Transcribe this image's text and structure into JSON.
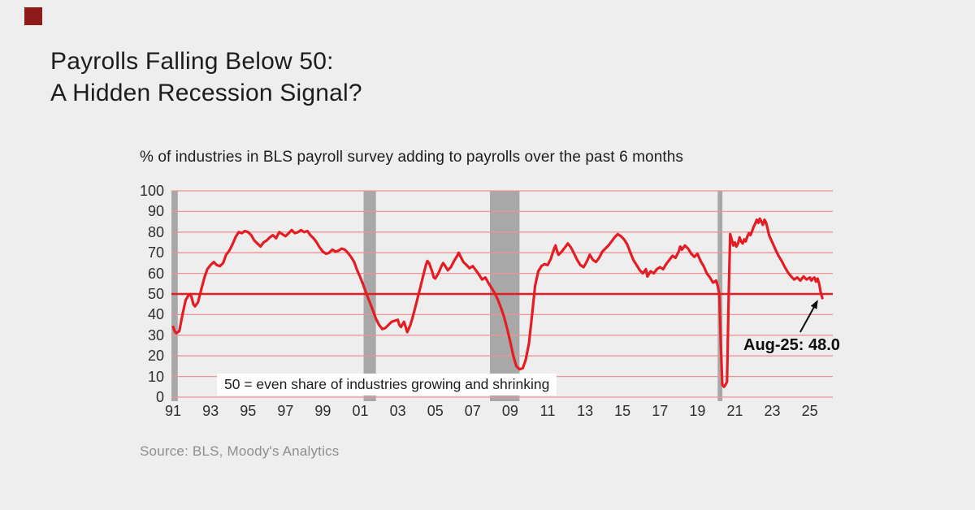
{
  "page": {
    "background": "#eeeeee"
  },
  "brand": {
    "square_color": "#8e1b1b"
  },
  "header": {
    "title_line1": "Payrolls Falling Below 50:",
    "title_line2": "A Hidden Recession Signal?"
  },
  "chart": {
    "subtitle": "% of industries in BLS payroll survey adding to payrolls over the past 6 months",
    "refline_label": "50 = even share of industries growing and shrinking",
    "annotation": {
      "label": "Aug-25: 48.0",
      "arrow_from": [
        2024.49,
        31.5
      ],
      "arrow_to": [
        2025.4,
        46.5
      ]
    },
    "source": "Source: BLS, Moody's Analytics"
  },
  "chart_data": {
    "type": "line",
    "title": "% of industries in BLS payroll survey adding to payrolls over the past 6 months",
    "xlabel": "",
    "ylabel": "",
    "xlim": [
      1990.91,
      2026.23
    ],
    "ylim": [
      0,
      100
    ],
    "yticks": [
      0,
      10,
      20,
      30,
      40,
      50,
      60,
      70,
      80,
      90,
      100
    ],
    "xticks": [
      [
        1991,
        "91"
      ],
      [
        1993,
        "93"
      ],
      [
        1995,
        "95"
      ],
      [
        1997,
        "97"
      ],
      [
        1999,
        "99"
      ],
      [
        2001,
        "01"
      ],
      [
        2003,
        "03"
      ],
      [
        2005,
        "05"
      ],
      [
        2007,
        "07"
      ],
      [
        2009,
        "09"
      ],
      [
        2011,
        "11"
      ],
      [
        2013,
        "13"
      ],
      [
        2015,
        "15"
      ],
      [
        2017,
        "17"
      ],
      [
        2019,
        "19"
      ],
      [
        2021,
        "21"
      ],
      [
        2023,
        "23"
      ],
      [
        2025,
        "25"
      ]
    ],
    "grid": "horizontal",
    "legend": "none",
    "refline_y": 50,
    "recession_bands": [
      [
        1990.91,
        1991.25
      ],
      [
        2001.17,
        2001.83
      ],
      [
        2007.92,
        2009.5
      ],
      [
        2020.08,
        2020.33
      ]
    ],
    "colors": {
      "line": "#e41d25",
      "grid_minor": "#eb9494",
      "refline": "#e41d25",
      "band": "#a8a8a8",
      "annotation": "#0d0d0d"
    },
    "series": [
      {
        "name": "% of industries adding to payrolls over past 6 months",
        "color": "#e41d25",
        "points": [
          [
            1991.0,
            34
          ],
          [
            1991.08,
            32
          ],
          [
            1991.17,
            31
          ],
          [
            1991.33,
            32
          ],
          [
            1991.5,
            40
          ],
          [
            1991.67,
            47
          ],
          [
            1991.83,
            49.5
          ],
          [
            1991.92,
            50
          ],
          [
            1992.0,
            48
          ],
          [
            1992.08,
            45
          ],
          [
            1992.17,
            44
          ],
          [
            1992.33,
            46
          ],
          [
            1992.5,
            52
          ],
          [
            1992.67,
            58
          ],
          [
            1992.83,
            62
          ],
          [
            1993.0,
            64
          ],
          [
            1993.17,
            65.5
          ],
          [
            1993.33,
            64
          ],
          [
            1993.5,
            63.5
          ],
          [
            1993.67,
            65
          ],
          [
            1993.83,
            69
          ],
          [
            1994.0,
            71
          ],
          [
            1994.17,
            74
          ],
          [
            1994.33,
            77.5
          ],
          [
            1994.5,
            80
          ],
          [
            1994.67,
            79.5
          ],
          [
            1994.83,
            80.5
          ],
          [
            1995.0,
            80
          ],
          [
            1995.17,
            78.5
          ],
          [
            1995.33,
            76
          ],
          [
            1995.5,
            74.5
          ],
          [
            1995.67,
            73
          ],
          [
            1995.83,
            75
          ],
          [
            1996.0,
            76
          ],
          [
            1996.17,
            77.5
          ],
          [
            1996.33,
            78.5
          ],
          [
            1996.5,
            77
          ],
          [
            1996.67,
            80
          ],
          [
            1996.83,
            79
          ],
          [
            1997.0,
            78
          ],
          [
            1997.17,
            79.5
          ],
          [
            1997.33,
            81
          ],
          [
            1997.5,
            79.5
          ],
          [
            1997.67,
            80
          ],
          [
            1997.83,
            81
          ],
          [
            1998.0,
            80
          ],
          [
            1998.17,
            80.5
          ],
          [
            1998.33,
            78.5
          ],
          [
            1998.5,
            77
          ],
          [
            1998.67,
            75
          ],
          [
            1998.83,
            72.5
          ],
          [
            1999.0,
            70.5
          ],
          [
            1999.17,
            69.5
          ],
          [
            1999.33,
            70
          ],
          [
            1999.5,
            71.5
          ],
          [
            1999.67,
            70.5
          ],
          [
            1999.83,
            71
          ],
          [
            2000.0,
            72
          ],
          [
            2000.17,
            71.5
          ],
          [
            2000.33,
            70
          ],
          [
            2000.5,
            68
          ],
          [
            2000.67,
            65.5
          ],
          [
            2000.83,
            61.5
          ],
          [
            2001.0,
            58
          ],
          [
            2001.17,
            54
          ],
          [
            2001.33,
            50
          ],
          [
            2001.5,
            46
          ],
          [
            2001.67,
            42
          ],
          [
            2001.83,
            38
          ],
          [
            2002.0,
            35
          ],
          [
            2002.17,
            33
          ],
          [
            2002.33,
            33.5
          ],
          [
            2002.5,
            35
          ],
          [
            2002.67,
            36.5
          ],
          [
            2002.83,
            37
          ],
          [
            2003.0,
            37.5
          ],
          [
            2003.08,
            35
          ],
          [
            2003.17,
            34
          ],
          [
            2003.33,
            36.5
          ],
          [
            2003.42,
            34
          ],
          [
            2003.5,
            31.5
          ],
          [
            2003.58,
            33
          ],
          [
            2003.67,
            35
          ],
          [
            2003.83,
            40
          ],
          [
            2004.0,
            46
          ],
          [
            2004.17,
            52
          ],
          [
            2004.33,
            58
          ],
          [
            2004.5,
            64
          ],
          [
            2004.58,
            66
          ],
          [
            2004.67,
            65
          ],
          [
            2004.83,
            61
          ],
          [
            2004.92,
            58
          ],
          [
            2005.0,
            57.5
          ],
          [
            2005.17,
            60
          ],
          [
            2005.33,
            63.5
          ],
          [
            2005.42,
            65
          ],
          [
            2005.5,
            64
          ],
          [
            2005.67,
            61.5
          ],
          [
            2005.83,
            63
          ],
          [
            2006.0,
            66
          ],
          [
            2006.17,
            68.5
          ],
          [
            2006.25,
            70
          ],
          [
            2006.33,
            68.5
          ],
          [
            2006.5,
            65.5
          ],
          [
            2006.67,
            64
          ],
          [
            2006.83,
            62.5
          ],
          [
            2007.0,
            63.5
          ],
          [
            2007.17,
            61.5
          ],
          [
            2007.33,
            59.5
          ],
          [
            2007.5,
            57
          ],
          [
            2007.67,
            58
          ],
          [
            2007.83,
            55.5
          ],
          [
            2008.0,
            53
          ],
          [
            2008.17,
            50.5
          ],
          [
            2008.33,
            47.5
          ],
          [
            2008.5,
            43.5
          ],
          [
            2008.67,
            39
          ],
          [
            2008.83,
            33.5
          ],
          [
            2009.0,
            27
          ],
          [
            2009.17,
            20
          ],
          [
            2009.33,
            15
          ],
          [
            2009.5,
            13.5
          ],
          [
            2009.67,
            14
          ],
          [
            2009.83,
            18
          ],
          [
            2010.0,
            26
          ],
          [
            2010.17,
            40
          ],
          [
            2010.33,
            54
          ],
          [
            2010.5,
            61
          ],
          [
            2010.67,
            63.5
          ],
          [
            2010.83,
            64.5
          ],
          [
            2011.0,
            64
          ],
          [
            2011.17,
            67
          ],
          [
            2011.33,
            71.5
          ],
          [
            2011.42,
            73.5
          ],
          [
            2011.5,
            71
          ],
          [
            2011.58,
            69
          ],
          [
            2011.75,
            70.5
          ],
          [
            2011.92,
            72.5
          ],
          [
            2012.08,
            74.5
          ],
          [
            2012.25,
            72.5
          ],
          [
            2012.42,
            69.5
          ],
          [
            2012.58,
            66.5
          ],
          [
            2012.75,
            64
          ],
          [
            2012.92,
            63
          ],
          [
            2013.08,
            65.5
          ],
          [
            2013.25,
            69
          ],
          [
            2013.42,
            66.5
          ],
          [
            2013.58,
            65.5
          ],
          [
            2013.75,
            67.5
          ],
          [
            2013.92,
            70.5
          ],
          [
            2014.08,
            72
          ],
          [
            2014.25,
            73.5
          ],
          [
            2014.42,
            75.5
          ],
          [
            2014.58,
            77.5
          ],
          [
            2014.75,
            79
          ],
          [
            2014.92,
            78
          ],
          [
            2015.08,
            76.5
          ],
          [
            2015.25,
            74
          ],
          [
            2015.42,
            70
          ],
          [
            2015.58,
            66.5
          ],
          [
            2015.75,
            64
          ],
          [
            2015.92,
            61.5
          ],
          [
            2016.08,
            60
          ],
          [
            2016.25,
            62
          ],
          [
            2016.33,
            58.5
          ],
          [
            2016.5,
            61
          ],
          [
            2016.67,
            60
          ],
          [
            2016.83,
            62
          ],
          [
            2017.0,
            63
          ],
          [
            2017.17,
            62
          ],
          [
            2017.33,
            64.5
          ],
          [
            2017.5,
            66.5
          ],
          [
            2017.67,
            68.5
          ],
          [
            2017.83,
            67.5
          ],
          [
            2018.0,
            70.5
          ],
          [
            2018.08,
            73
          ],
          [
            2018.17,
            71.5
          ],
          [
            2018.33,
            73.5
          ],
          [
            2018.5,
            72
          ],
          [
            2018.67,
            69.5
          ],
          [
            2018.83,
            68
          ],
          [
            2019.0,
            69.5
          ],
          [
            2019.17,
            66
          ],
          [
            2019.33,
            63.5
          ],
          [
            2019.5,
            60
          ],
          [
            2019.67,
            58
          ],
          [
            2019.83,
            55.5
          ],
          [
            2020.0,
            56.5
          ],
          [
            2020.08,
            54
          ],
          [
            2020.17,
            50
          ],
          [
            2020.25,
            25
          ],
          [
            2020.33,
            6
          ],
          [
            2020.42,
            5
          ],
          [
            2020.5,
            6
          ],
          [
            2020.58,
            7.5
          ],
          [
            2020.67,
            50
          ],
          [
            2020.75,
            79
          ],
          [
            2020.83,
            76.5
          ],
          [
            2020.92,
            73.5
          ],
          [
            2021.0,
            75
          ],
          [
            2021.08,
            73
          ],
          [
            2021.17,
            74.5
          ],
          [
            2021.25,
            77.5
          ],
          [
            2021.33,
            75.5
          ],
          [
            2021.42,
            74.5
          ],
          [
            2021.5,
            76.5
          ],
          [
            2021.58,
            75.5
          ],
          [
            2021.67,
            78
          ],
          [
            2021.75,
            79.5
          ],
          [
            2021.83,
            78.5
          ],
          [
            2021.92,
            80.5
          ],
          [
            2022.0,
            82.5
          ],
          [
            2022.08,
            84
          ],
          [
            2022.17,
            86
          ],
          [
            2022.25,
            84.5
          ],
          [
            2022.33,
            86.5
          ],
          [
            2022.42,
            85
          ],
          [
            2022.5,
            83.5
          ],
          [
            2022.58,
            86
          ],
          [
            2022.67,
            84.5
          ],
          [
            2022.75,
            81.5
          ],
          [
            2022.83,
            78.5
          ],
          [
            2022.92,
            76.5
          ],
          [
            2023.0,
            75
          ],
          [
            2023.17,
            71.5
          ],
          [
            2023.33,
            68.5
          ],
          [
            2023.5,
            66
          ],
          [
            2023.67,
            63
          ],
          [
            2023.83,
            60.5
          ],
          [
            2024.0,
            58.5
          ],
          [
            2024.17,
            57
          ],
          [
            2024.33,
            58
          ],
          [
            2024.5,
            56.5
          ],
          [
            2024.67,
            58.5
          ],
          [
            2024.83,
            57
          ],
          [
            2025.0,
            58
          ],
          [
            2025.08,
            56.5
          ],
          [
            2025.17,
            57.5
          ],
          [
            2025.25,
            58
          ],
          [
            2025.33,
            56
          ],
          [
            2025.42,
            57.5
          ],
          [
            2025.5,
            55
          ],
          [
            2025.58,
            51
          ],
          [
            2025.67,
            48
          ]
        ]
      }
    ]
  }
}
